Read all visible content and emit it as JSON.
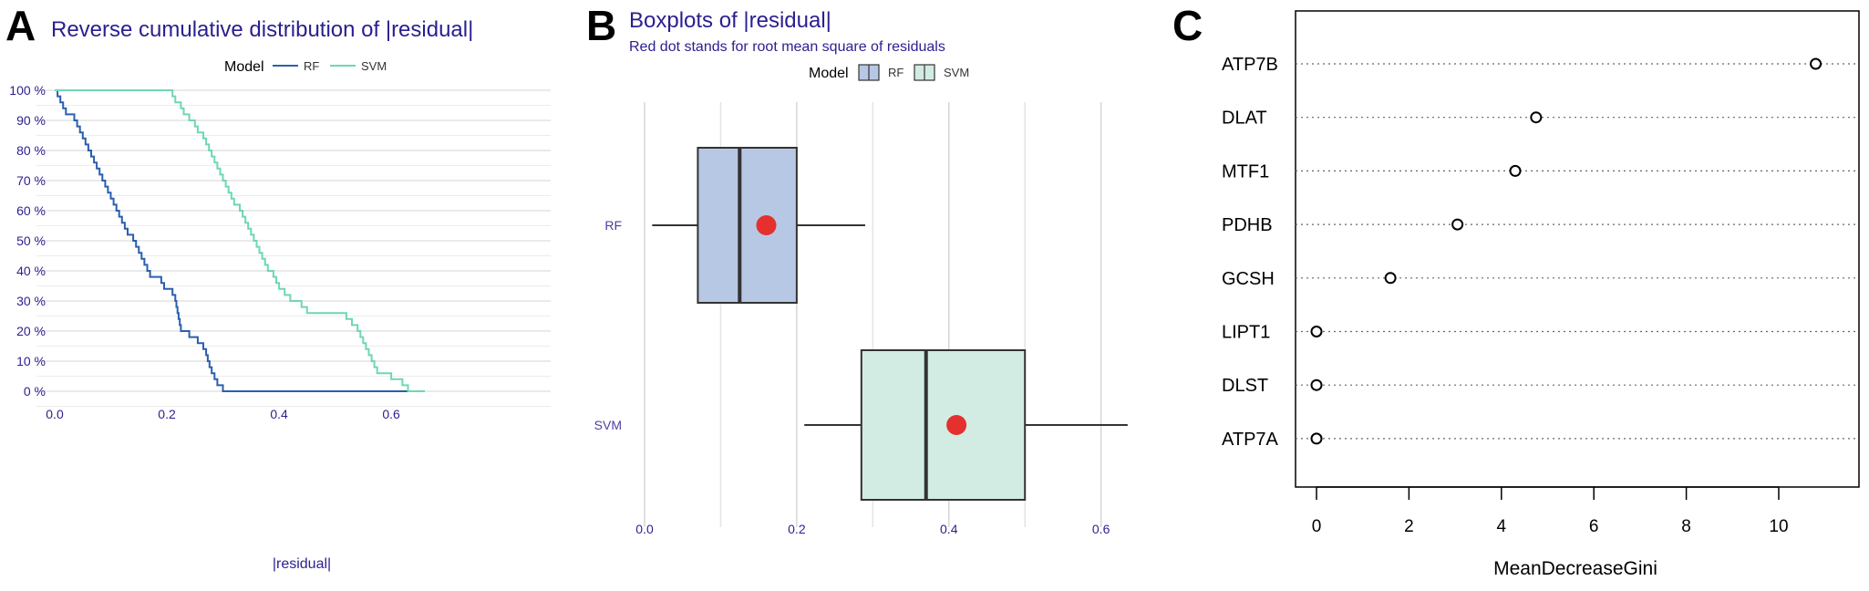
{
  "panels": {
    "a": {
      "letter": "A",
      "title": "Reverse cumulative distribution of |residual|",
      "legend_title": "Model",
      "legend_items": [
        {
          "label": "RF",
          "color": "#2b5fad"
        },
        {
          "label": "SVM",
          "color": "#6fd6b4"
        }
      ]
    },
    "b": {
      "letter": "B",
      "title": "Boxplots of |residual|",
      "subtitle": "Red dot stands for root mean square of residuals",
      "legend_title": "Model",
      "legend_items": [
        {
          "label": "RF",
          "color": "#b7c8e4"
        },
        {
          "label": "SVM",
          "color": "#d3ece3"
        }
      ]
    },
    "c": {
      "letter": "C"
    }
  },
  "chart_data": [
    {
      "type": "line",
      "title": "Reverse cumulative distribution of |residual|",
      "xlabel": "|residual|",
      "ylabel": "",
      "xlim": [
        0,
        0.66
      ],
      "ylim": [
        0,
        100
      ],
      "x_ticks": [
        0.0,
        0.2,
        0.4,
        0.6
      ],
      "x_tick_labels": [
        "0.0",
        "0.2",
        "0.4",
        "0.6"
      ],
      "y_ticks": [
        0,
        10,
        20,
        30,
        40,
        50,
        60,
        70,
        80,
        90,
        100
      ],
      "y_tick_labels": [
        "0 %",
        "10 %",
        "20 %",
        "30 %",
        "40 %",
        "50 %",
        "60 %",
        "70 %",
        "80 %",
        "90 %",
        "100 %"
      ],
      "grid": true,
      "legend_position": "top",
      "series": [
        {
          "name": "RF",
          "color": "#2b5fad",
          "points": [
            [
              0.0,
              100
            ],
            [
              0.005,
              100
            ],
            [
              0.005,
              98
            ],
            [
              0.01,
              98
            ],
            [
              0.01,
              96
            ],
            [
              0.015,
              96
            ],
            [
              0.015,
              94
            ],
            [
              0.02,
              94
            ],
            [
              0.02,
              92
            ],
            [
              0.035,
              92
            ],
            [
              0.035,
              90
            ],
            [
              0.04,
              90
            ],
            [
              0.04,
              88
            ],
            [
              0.045,
              88
            ],
            [
              0.045,
              86
            ],
            [
              0.05,
              86
            ],
            [
              0.05,
              84
            ],
            [
              0.055,
              84
            ],
            [
              0.055,
              82
            ],
            [
              0.06,
              82
            ],
            [
              0.06,
              80
            ],
            [
              0.065,
              80
            ],
            [
              0.065,
              78
            ],
            [
              0.07,
              78
            ],
            [
              0.07,
              76
            ],
            [
              0.075,
              76
            ],
            [
              0.075,
              74
            ],
            [
              0.08,
              74
            ],
            [
              0.08,
              72
            ],
            [
              0.085,
              72
            ],
            [
              0.085,
              70
            ],
            [
              0.09,
              70
            ],
            [
              0.09,
              68
            ],
            [
              0.095,
              68
            ],
            [
              0.095,
              66
            ],
            [
              0.1,
              66
            ],
            [
              0.1,
              64
            ],
            [
              0.105,
              64
            ],
            [
              0.105,
              62
            ],
            [
              0.11,
              62
            ],
            [
              0.11,
              60
            ],
            [
              0.115,
              60
            ],
            [
              0.115,
              58
            ],
            [
              0.12,
              58
            ],
            [
              0.12,
              56
            ],
            [
              0.125,
              56
            ],
            [
              0.125,
              54
            ],
            [
              0.13,
              54
            ],
            [
              0.13,
              52
            ],
            [
              0.14,
              52
            ],
            [
              0.14,
              50
            ],
            [
              0.145,
              50
            ],
            [
              0.145,
              48
            ],
            [
              0.15,
              48
            ],
            [
              0.15,
              46
            ],
            [
              0.155,
              46
            ],
            [
              0.155,
              44
            ],
            [
              0.16,
              44
            ],
            [
              0.16,
              42
            ],
            [
              0.165,
              42
            ],
            [
              0.165,
              40
            ],
            [
              0.17,
              40
            ],
            [
              0.17,
              38
            ],
            [
              0.19,
              38
            ],
            [
              0.19,
              36
            ],
            [
              0.195,
              36
            ],
            [
              0.195,
              34
            ],
            [
              0.21,
              34
            ],
            [
              0.21,
              32
            ],
            [
              0.215,
              32
            ],
            [
              0.215,
              30
            ],
            [
              0.217,
              30
            ],
            [
              0.217,
              28
            ],
            [
              0.219,
              28
            ],
            [
              0.219,
              26
            ],
            [
              0.221,
              26
            ],
            [
              0.221,
              24
            ],
            [
              0.223,
              24
            ],
            [
              0.223,
              22
            ],
            [
              0.225,
              22
            ],
            [
              0.225,
              20
            ],
            [
              0.24,
              20
            ],
            [
              0.24,
              18
            ],
            [
              0.255,
              18
            ],
            [
              0.255,
              16
            ],
            [
              0.265,
              16
            ],
            [
              0.265,
              14
            ],
            [
              0.27,
              14
            ],
            [
              0.27,
              12
            ],
            [
              0.273,
              12
            ],
            [
              0.273,
              10
            ],
            [
              0.276,
              10
            ],
            [
              0.276,
              8
            ],
            [
              0.28,
              8
            ],
            [
              0.28,
              6
            ],
            [
              0.285,
              6
            ],
            [
              0.285,
              4
            ],
            [
              0.29,
              4
            ],
            [
              0.29,
              2
            ],
            [
              0.3,
              2
            ],
            [
              0.3,
              0
            ],
            [
              0.63,
              0
            ]
          ]
        },
        {
          "name": "SVM",
          "color": "#6fd6b4",
          "points": [
            [
              0.0,
              100
            ],
            [
              0.21,
              100
            ],
            [
              0.21,
              98
            ],
            [
              0.215,
              98
            ],
            [
              0.215,
              96
            ],
            [
              0.225,
              96
            ],
            [
              0.225,
              94
            ],
            [
              0.23,
              94
            ],
            [
              0.23,
              92
            ],
            [
              0.24,
              92
            ],
            [
              0.24,
              90
            ],
            [
              0.25,
              90
            ],
            [
              0.25,
              88
            ],
            [
              0.255,
              88
            ],
            [
              0.255,
              86
            ],
            [
              0.265,
              86
            ],
            [
              0.265,
              84
            ],
            [
              0.27,
              84
            ],
            [
              0.27,
              82
            ],
            [
              0.275,
              82
            ],
            [
              0.275,
              80
            ],
            [
              0.28,
              80
            ],
            [
              0.28,
              78
            ],
            [
              0.285,
              78
            ],
            [
              0.285,
              76
            ],
            [
              0.29,
              76
            ],
            [
              0.29,
              74
            ],
            [
              0.295,
              74
            ],
            [
              0.295,
              72
            ],
            [
              0.3,
              72
            ],
            [
              0.3,
              70
            ],
            [
              0.305,
              70
            ],
            [
              0.305,
              68
            ],
            [
              0.31,
              68
            ],
            [
              0.31,
              66
            ],
            [
              0.315,
              66
            ],
            [
              0.315,
              64
            ],
            [
              0.32,
              64
            ],
            [
              0.32,
              62
            ],
            [
              0.33,
              62
            ],
            [
              0.33,
              60
            ],
            [
              0.335,
              60
            ],
            [
              0.335,
              58
            ],
            [
              0.34,
              58
            ],
            [
              0.34,
              56
            ],
            [
              0.345,
              56
            ],
            [
              0.345,
              54
            ],
            [
              0.35,
              54
            ],
            [
              0.35,
              52
            ],
            [
              0.355,
              52
            ],
            [
              0.355,
              50
            ],
            [
              0.36,
              50
            ],
            [
              0.36,
              48
            ],
            [
              0.365,
              48
            ],
            [
              0.365,
              46
            ],
            [
              0.37,
              46
            ],
            [
              0.37,
              44
            ],
            [
              0.375,
              44
            ],
            [
              0.375,
              42
            ],
            [
              0.38,
              42
            ],
            [
              0.38,
              40
            ],
            [
              0.39,
              40
            ],
            [
              0.39,
              38
            ],
            [
              0.395,
              38
            ],
            [
              0.395,
              36
            ],
            [
              0.4,
              36
            ],
            [
              0.4,
              34
            ],
            [
              0.41,
              34
            ],
            [
              0.41,
              32
            ],
            [
              0.42,
              32
            ],
            [
              0.42,
              30
            ],
            [
              0.44,
              30
            ],
            [
              0.44,
              28
            ],
            [
              0.45,
              28
            ],
            [
              0.45,
              26
            ],
            [
              0.52,
              26
            ],
            [
              0.52,
              24
            ],
            [
              0.53,
              24
            ],
            [
              0.53,
              22
            ],
            [
              0.54,
              22
            ],
            [
              0.54,
              20
            ],
            [
              0.545,
              20
            ],
            [
              0.545,
              18
            ],
            [
              0.55,
              18
            ],
            [
              0.55,
              16
            ],
            [
              0.555,
              16
            ],
            [
              0.555,
              14
            ],
            [
              0.56,
              14
            ],
            [
              0.56,
              12
            ],
            [
              0.565,
              12
            ],
            [
              0.565,
              10
            ],
            [
              0.57,
              10
            ],
            [
              0.57,
              8
            ],
            [
              0.575,
              8
            ],
            [
              0.575,
              6
            ],
            [
              0.6,
              6
            ],
            [
              0.6,
              4
            ],
            [
              0.62,
              4
            ],
            [
              0.62,
              2
            ],
            [
              0.63,
              2
            ],
            [
              0.63,
              0
            ],
            [
              0.66,
              0
            ]
          ]
        }
      ]
    },
    {
      "type": "boxplot",
      "title": "Boxplots of |residual|",
      "subtitle": "Red dot stands for root mean square of residuals",
      "xlim": [
        -0.02,
        0.66
      ],
      "x_ticks": [
        0.0,
        0.2,
        0.4,
        0.6
      ],
      "x_tick_labels": [
        "0.0",
        "0.2",
        "0.4",
        "0.6"
      ],
      "grid": true,
      "legend_position": "top",
      "categories": [
        "RF",
        "SVM"
      ],
      "series": [
        {
          "name": "RF",
          "color": "#b7c8e4",
          "whisker_low": 0.01,
          "q1": 0.07,
          "median": 0.125,
          "q3": 0.2,
          "whisker_high": 0.29,
          "rmse": 0.16
        },
        {
          "name": "SVM",
          "color": "#d3ece3",
          "whisker_low": 0.21,
          "q1": 0.285,
          "median": 0.37,
          "q3": 0.5,
          "whisker_high": 0.635,
          "rmse": 0.41
        }
      ]
    },
    {
      "type": "scatter",
      "title": "",
      "xlabel": "MeanDecreaseGini",
      "ylabel": "",
      "xlim": [
        -0.4,
        11.2
      ],
      "x_ticks": [
        0,
        2,
        4,
        6,
        8,
        10
      ],
      "x_tick_labels": [
        "0",
        "2",
        "4",
        "6",
        "8",
        "10"
      ],
      "categories": [
        "ATP7B",
        "DLAT",
        "MTF1",
        "PDHB",
        "GCSH",
        "LIPT1",
        "DLST",
        "ATP7A"
      ],
      "values": [
        10.8,
        4.75,
        4.3,
        3.05,
        1.6,
        0.0,
        0.0,
        0.0
      ]
    }
  ]
}
